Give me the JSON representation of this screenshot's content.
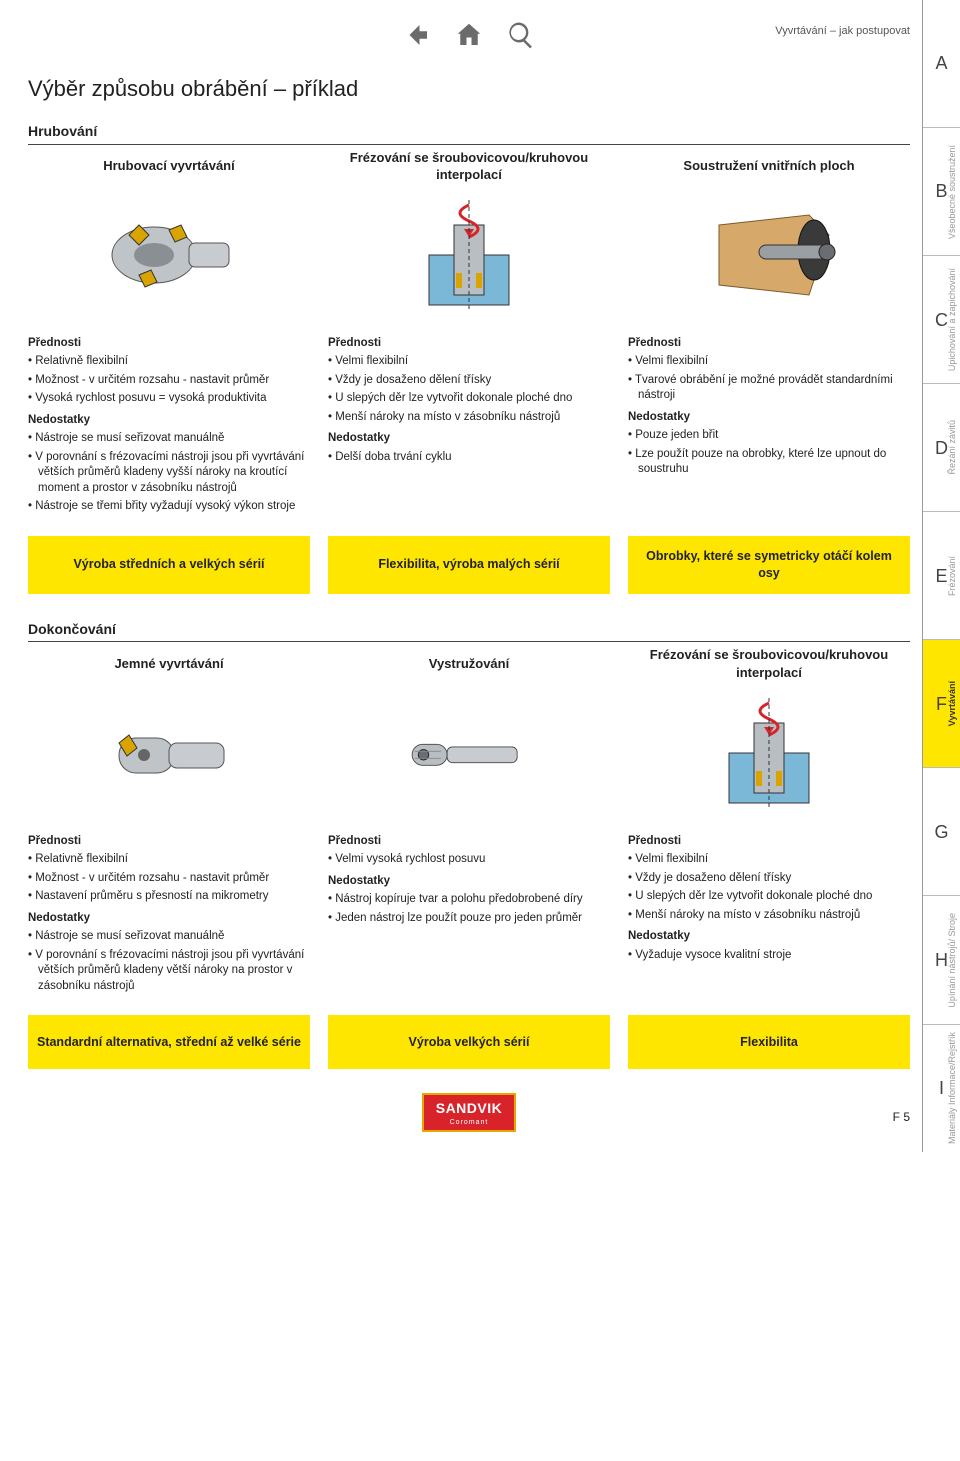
{
  "breadcrumb": "Vyvrtávání – jak postupovat",
  "page_title": "Výběr způsobu obrábění – příklad",
  "section1": {
    "label": "Hrubování",
    "cols": [
      {
        "head": "Hrubovací vyvrtávání",
        "adv_label": "Přednosti",
        "adv": [
          "Relativně flexibilní",
          "Možnost - v určitém rozsahu - nastavit průměr",
          "Vysoká rychlost posuvu = vysoká produktivita"
        ],
        "dis_label": "Nedostatky",
        "dis": [
          "Nástroje se musí seřizovat manuálně",
          "V porovnání s frézovacími nástroji jsou při vyvrtávání větších průměrů kladeny vyšší nároky na kroutící moment a prostor v zásobníku nástrojů",
          "Nástroje se třemi břity vyžadují vysoký výkon stroje"
        ],
        "yellow": "Výroba středních a velkých sérií"
      },
      {
        "head": "Frézování se šroubovicovou/kruhovou interpolací",
        "adv_label": "Přednosti",
        "adv": [
          "Velmi flexibilní",
          "Vždy je dosaženo dělení třísky",
          "U slepých děr lze vytvořit dokonale ploché dno",
          "Menší nároky na místo v zásobníku nástrojů"
        ],
        "dis_label": "Nedostatky",
        "dis": [
          "Delší doba trvání cyklu"
        ],
        "yellow": "Flexibilita, výroba malých sérií"
      },
      {
        "head": "Soustružení vnitřních ploch",
        "adv_label": "Přednosti",
        "adv": [
          "Velmi flexibilní",
          "Tvarové obrábění je možné provádět standardními nástroji"
        ],
        "dis_label": "Nedostatky",
        "dis": [
          "Pouze jeden břit",
          "Lze použít pouze na obrobky, které lze upnout do soustruhu"
        ],
        "yellow": "Obrobky, které se symetricky otáčí kolem osy"
      }
    ]
  },
  "section2": {
    "label": "Dokončování",
    "cols": [
      {
        "head": "Jemné vyvrtávání",
        "adv_label": "Přednosti",
        "adv": [
          "Relativně flexibilní",
          "Možnost - v určitém rozsahu - nastavit průměr",
          "Nastavení průměru s přesností na mikrometry"
        ],
        "dis_label": "Nedostatky",
        "dis": [
          "Nástroje se musí seřizovat manuálně",
          "V porovnání s frézovacími nástroji jsou při vyvrtávání větších průměrů kladeny větší nároky na prostor v zásobníku nástrojů"
        ],
        "yellow": "Standardní alternativa, střední až velké série"
      },
      {
        "head": "Vystružování",
        "adv_label": "Přednosti",
        "adv": [
          "Velmi vysoká rychlost posuvu"
        ],
        "dis_label": "Nedostatky",
        "dis": [
          "Nástroj kopíruje tvar a polohu předobrobené díry",
          "Jeden nástroj lze použít pouze pro jeden průměr"
        ],
        "yellow": "Výroba velkých sérií"
      },
      {
        "head": "Frézování se šroubovicovou/kruhovou interpolací",
        "adv_label": "Přednosti",
        "adv": [
          "Velmi flexibilní",
          "Vždy je dosaženo dělení třísky",
          "U slepých děr lze vytvořit dokonale ploché dno",
          "Menší nároky na místo v zásobníku nástrojů"
        ],
        "dis_label": "Nedostatky",
        "dis": [
          "Vyžaduje vysoce kvalitní stroje"
        ],
        "yellow": "Flexibilita"
      }
    ]
  },
  "side_tabs": [
    {
      "letter": "A",
      "label": ""
    },
    {
      "letter": "B",
      "label": "Všeobecné soustružení"
    },
    {
      "letter": "C",
      "label": "Upichování a zapichování"
    },
    {
      "letter": "D",
      "label": "Řezání závitů"
    },
    {
      "letter": "E",
      "label": "Frézování"
    },
    {
      "letter": "F",
      "label": "Vrtání",
      "active": true,
      "active_label": "Vyvrtávání"
    },
    {
      "letter": "G",
      "label": ""
    },
    {
      "letter": "H",
      "label": "Upínání nástrojů/ Stroje"
    },
    {
      "letter": "I",
      "label": "Materiály  Informace/Rejstřík"
    }
  ],
  "brand": "SANDVIK",
  "brand_sub": "Coromant",
  "page_number": "F 5",
  "colors": {
    "yellow": "#ffe600",
    "brand_red": "#d8232a",
    "brand_border": "#e6a700"
  }
}
